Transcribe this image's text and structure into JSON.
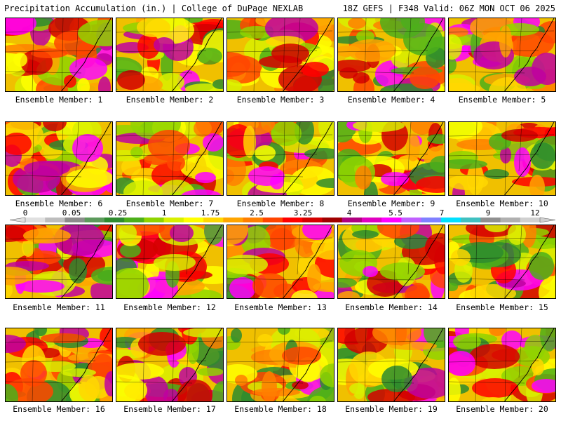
{
  "header": {
    "title": "Precipitation Accumulation (in.) | College of DuPage NEXLAB",
    "run_info": "18Z GEFS | F348 Valid: 06Z MON OCT 06 2025"
  },
  "panel_label_prefix": "Ensemble Member:",
  "panels": [
    {
      "member": "1"
    },
    {
      "member": "2"
    },
    {
      "member": "3"
    },
    {
      "member": "4"
    },
    {
      "member": "5"
    },
    {
      "member": "6"
    },
    {
      "member": "7"
    },
    {
      "member": "8"
    },
    {
      "member": "9"
    },
    {
      "member": "10"
    },
    {
      "member": "11"
    },
    {
      "member": "12"
    },
    {
      "member": "13"
    },
    {
      "member": "14"
    },
    {
      "member": "15"
    },
    {
      "member": "16"
    },
    {
      "member": "17"
    },
    {
      "member": "18"
    },
    {
      "member": "19"
    },
    {
      "member": "20"
    }
  ],
  "colorbar": {
    "unit": "in.",
    "labels": [
      "0",
      "0.05",
      "0.25",
      "1",
      "1.75",
      "2.5",
      "3.25",
      "4",
      "5.5",
      "7",
      "9",
      "12"
    ],
    "colors": [
      "#e0e0e0",
      "#bdbdbd",
      "#8c8c8c",
      "#5c9a5c",
      "#2e8b2e",
      "#4caf1a",
      "#8fd400",
      "#d8f000",
      "#ffff00",
      "#ffd700",
      "#ffa500",
      "#ff7f00",
      "#ff4500",
      "#ff0000",
      "#d40000",
      "#a00000",
      "#b00080",
      "#e000c0",
      "#ff00ff",
      "#c060ff",
      "#8080ff",
      "#00e0ff",
      "#40c0c0",
      "#909090",
      "#b0b0b0",
      "#d0d0d0"
    ]
  }
}
